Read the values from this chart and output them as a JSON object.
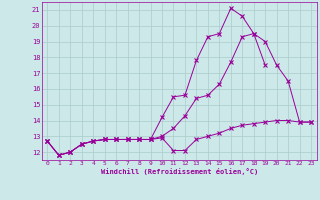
{
  "xlabel": "Windchill (Refroidissement éolien,°C)",
  "bg_color": "#cce8e8",
  "grid_color": "#aacccc",
  "line_color": "#990099",
  "xlim": [
    -0.5,
    23.5
  ],
  "ylim": [
    11.5,
    21.5
  ],
  "xticks": [
    0,
    1,
    2,
    3,
    4,
    5,
    6,
    7,
    8,
    9,
    10,
    11,
    12,
    13,
    14,
    15,
    16,
    17,
    18,
    19,
    20,
    21,
    22,
    23
  ],
  "yticks": [
    12,
    13,
    14,
    15,
    16,
    17,
    18,
    19,
    20,
    21
  ],
  "line1_x": [
    0,
    1,
    2,
    3,
    4,
    5,
    6,
    7,
    8,
    9,
    10,
    11,
    12,
    13,
    14,
    15,
    16,
    17,
    18,
    19,
    20,
    21,
    22,
    23
  ],
  "line1_y": [
    12.7,
    11.8,
    12.0,
    12.5,
    12.7,
    12.8,
    12.8,
    12.8,
    12.8,
    12.8,
    12.9,
    12.1,
    12.1,
    12.8,
    13.0,
    13.2,
    13.5,
    13.7,
    13.8,
    13.9,
    14.0,
    14.0,
    13.9,
    13.9
  ],
  "line2_x": [
    0,
    1,
    2,
    3,
    4,
    5,
    6,
    7,
    8,
    9,
    10,
    11,
    12,
    13,
    14,
    15,
    16,
    17,
    18,
    19,
    20,
    21,
    22,
    23
  ],
  "line2_y": [
    12.7,
    11.8,
    12.0,
    12.5,
    12.7,
    12.8,
    12.8,
    12.8,
    12.8,
    12.8,
    13.0,
    13.5,
    14.3,
    15.4,
    15.6,
    16.3,
    17.7,
    19.3,
    19.5,
    19.0,
    17.5,
    16.5,
    13.9,
    13.9
  ],
  "line3_x": [
    0,
    1,
    2,
    3,
    4,
    5,
    6,
    7,
    8,
    9,
    10,
    11,
    12,
    13,
    14,
    15,
    16,
    17,
    18,
    19,
    20,
    21,
    22,
    23
  ],
  "line3_y": [
    12.7,
    11.8,
    12.0,
    12.5,
    12.7,
    12.8,
    12.8,
    12.8,
    12.8,
    12.8,
    14.2,
    15.5,
    15.6,
    17.8,
    19.3,
    19.5,
    21.1,
    20.6,
    19.5,
    17.5,
    null,
    null,
    null,
    null
  ]
}
